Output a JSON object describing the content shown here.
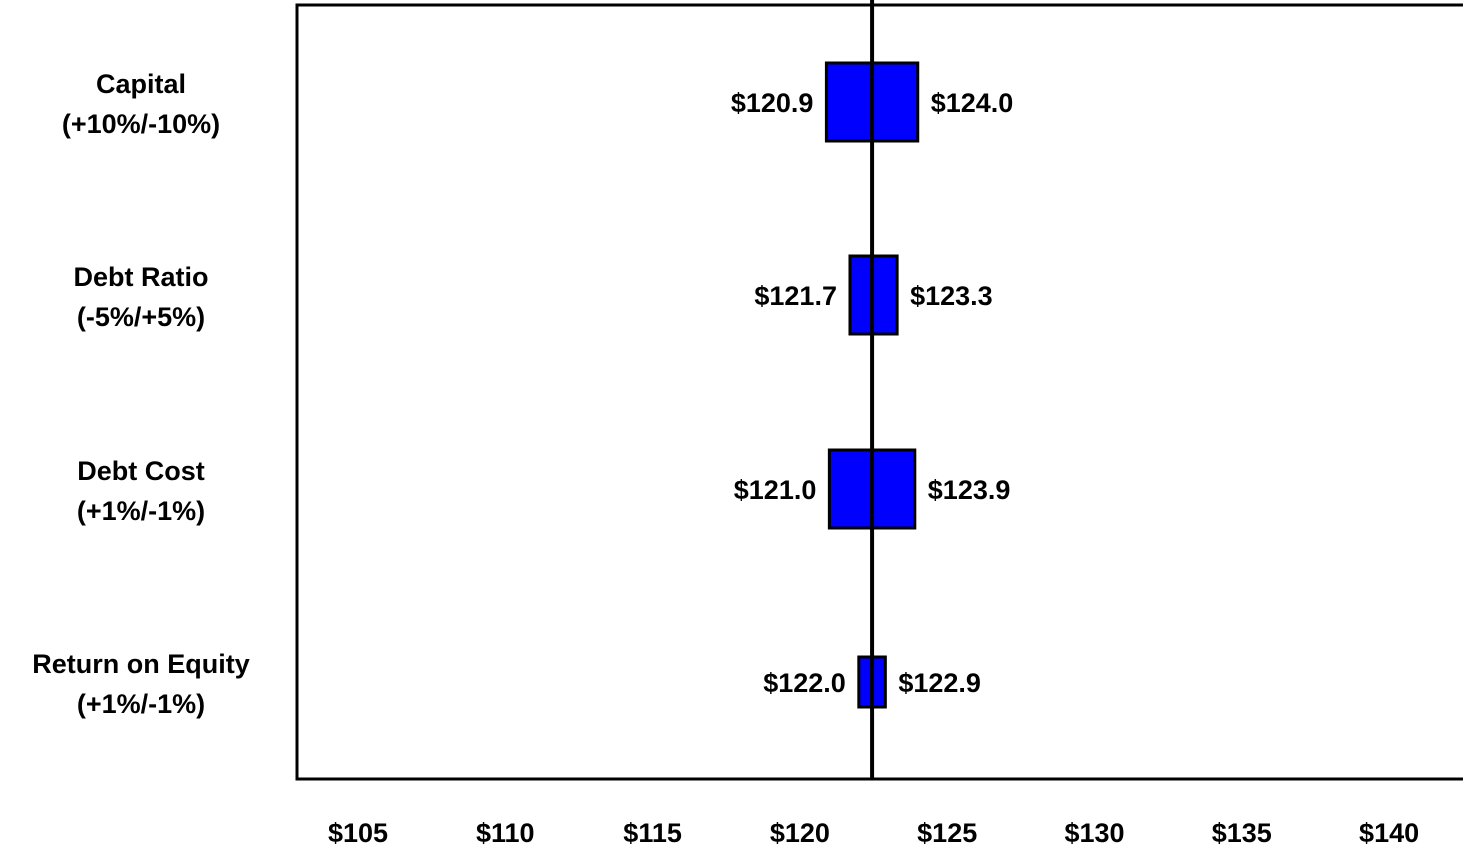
{
  "chart_data": {
    "type": "bar",
    "subtype": "tornado",
    "title": "",
    "xlabel": "",
    "ylabel": "",
    "baseline": 122.45,
    "xlim": [
      103.5,
      143.5
    ],
    "x_ticks": [
      105,
      110,
      115,
      120,
      125,
      130,
      135,
      140
    ],
    "x_tick_labels": [
      "$105",
      "$110",
      "$115",
      "$120",
      "$125",
      "$130",
      "$135",
      "$140"
    ],
    "categories": [
      {
        "line1": "Capital",
        "line2": "(+10%/-10%)",
        "low": 120.9,
        "high": 124.0,
        "low_label": "$120.9",
        "high_label": "$124.0"
      },
      {
        "line1": "Debt Ratio",
        "line2": "(-5%/+5%)",
        "low": 121.7,
        "high": 123.3,
        "low_label": "$121.7",
        "high_label": "$123.3"
      },
      {
        "line1": "Debt Cost",
        "line2": "(+1%/-1%)",
        "low": 121.0,
        "high": 123.9,
        "low_label": "$121.0",
        "high_label": "$123.9"
      },
      {
        "line1": "Return on Equity",
        "line2": "(+1%/-1%)",
        "low": 122.0,
        "high": 122.9,
        "low_label": "$122.0",
        "high_label": "$122.9"
      }
    ],
    "bar_color": "#0000ff",
    "grid": false,
    "legend": "none"
  }
}
